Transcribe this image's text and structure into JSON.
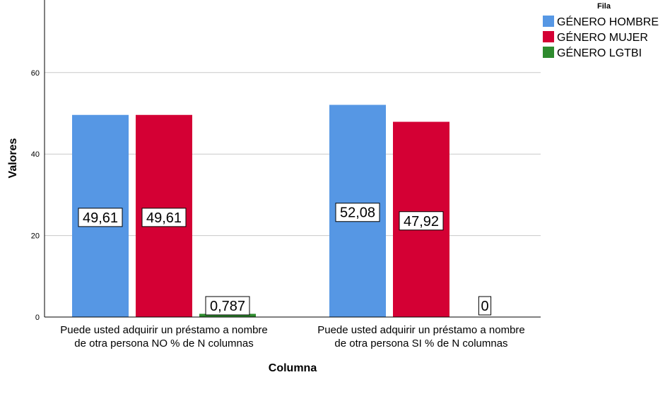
{
  "chart_data": {
    "type": "bar",
    "xlabel": "Columna",
    "ylabel": "Valores",
    "ylim": [
      0,
      75
    ],
    "yticks": [
      0,
      20,
      40,
      60
    ],
    "grid": true,
    "legend_title": "Fila",
    "legend_position": "top-right",
    "categories": [
      [
        "Puede usted adquirir un préstamo a nombre",
        "de otra persona NO % de N columnas"
      ],
      [
        "Puede usted adquirir un préstamo a nombre",
        "de otra persona SI % de N columnas"
      ]
    ],
    "series": [
      {
        "name": "GÉNERO HOMBRE",
        "color": "#5697e4",
        "values": [
          49.61,
          52.08
        ],
        "labels": [
          "49,61",
          "52,08"
        ]
      },
      {
        "name": "GÉNERO MUJER",
        "color": "#d40034",
        "values": [
          49.61,
          47.92
        ],
        "labels": [
          "49,61",
          "47,92"
        ]
      },
      {
        "name": "GÉNERO LGTBI",
        "color": "#2e8b2e",
        "values": [
          0.787,
          0
        ],
        "labels": [
          "0,787",
          "0"
        ]
      }
    ]
  }
}
